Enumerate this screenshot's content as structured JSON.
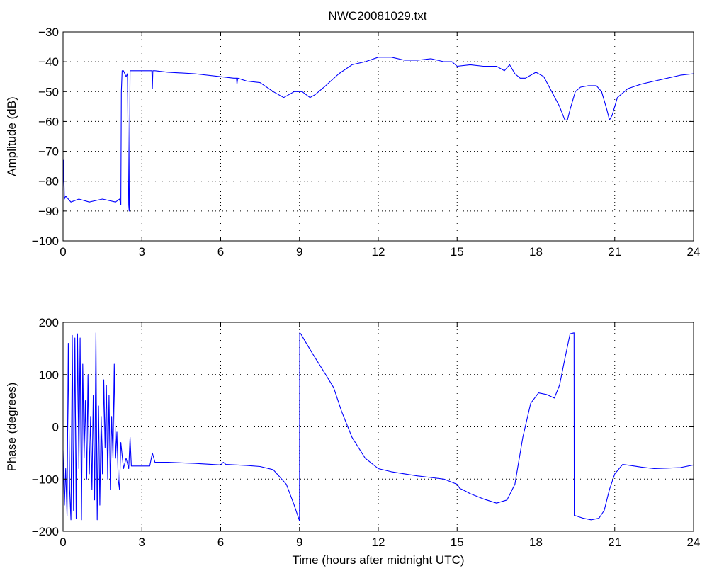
{
  "figure": {
    "title": "NWC20081029.txt",
    "background": "#ffffff",
    "line_color": "#0000ff",
    "axis_color": "#000000"
  },
  "chart_data": [
    {
      "type": "line",
      "title": "NWC20081029.txt",
      "xlabel": "",
      "ylabel": "Amplitude (dB)",
      "xlim": [
        0,
        24
      ],
      "ylim": [
        -100,
        -30
      ],
      "xticks": [
        0,
        3,
        6,
        9,
        12,
        15,
        18,
        21,
        24
      ],
      "xtick_labels": [
        "0",
        "3",
        "6",
        "9",
        "12",
        "15",
        "18",
        "21",
        "24"
      ],
      "yticks": [
        -100,
        -90,
        -80,
        -70,
        -60,
        -50,
        -40,
        -30
      ],
      "ytick_labels": [
        "−100",
        "−90",
        "−80",
        "−70",
        "−60",
        "−50",
        "−40",
        "−30"
      ],
      "grid": true,
      "series": [
        {
          "color": "#0000ff",
          "x": [
            0.0,
            0.02,
            0.05,
            0.1,
            0.3,
            0.6,
            1.0,
            1.5,
            2.0,
            2.15,
            2.2,
            2.22,
            2.25,
            2.3,
            2.4,
            2.45,
            2.5,
            2.52,
            2.55,
            2.6,
            2.8,
            3.0,
            3.2,
            3.3,
            3.38,
            3.4,
            3.42,
            3.5,
            4.0,
            5.0,
            6.0,
            6.5,
            6.6,
            6.62,
            6.65,
            7.0,
            7.5,
            8.0,
            8.4,
            8.8,
            9.1,
            9.4,
            9.6,
            10.0,
            10.5,
            11.0,
            11.5,
            12.0,
            12.5,
            13.0,
            13.5,
            14.0,
            14.5,
            14.8,
            15.0,
            15.5,
            16.0,
            16.5,
            16.8,
            17.0,
            17.2,
            17.4,
            17.6,
            17.8,
            18.0,
            18.3,
            18.6,
            18.9,
            19.1,
            19.2,
            19.3,
            19.5,
            19.7,
            20.0,
            20.3,
            20.5,
            20.7,
            20.8,
            20.9,
            21.1,
            21.5,
            22.0,
            22.5,
            23.0,
            23.5,
            24.0
          ],
          "y": [
            -83,
            -73,
            -86,
            -85,
            -87,
            -86,
            -87,
            -86,
            -87,
            -86,
            -88,
            -50,
            -43,
            -43,
            -45,
            -44,
            -88,
            -90,
            -43,
            -43,
            -43,
            -43,
            -43,
            -43,
            -43,
            -49,
            -43,
            -43,
            -43.5,
            -44,
            -45,
            -45.5,
            -45.5,
            -47.5,
            -45.5,
            -46.5,
            -47,
            -50,
            -52,
            -50,
            -50,
            -52,
            -51,
            -48,
            -44,
            -41,
            -40,
            -38.5,
            -38.5,
            -39.5,
            -39.5,
            -39,
            -40,
            -40,
            -41.5,
            -41,
            -41.5,
            -41.5,
            -43,
            -41,
            -44,
            -45.5,
            -45.5,
            -44.5,
            -43.5,
            -45,
            -50,
            -55,
            -59.5,
            -59.5,
            -56,
            -50,
            -48.5,
            -48,
            -48,
            -50,
            -56,
            -59.5,
            -58,
            -52,
            -49,
            -47.5,
            -46.5,
            -45.5,
            -44.5,
            -44
          ]
        }
      ]
    },
    {
      "type": "line",
      "title": "",
      "xlabel": "Time (hours after midnight UTC)",
      "ylabel": "Phase (degrees)",
      "xlim": [
        0,
        24
      ],
      "ylim": [
        -200,
        200
      ],
      "xticks": [
        0,
        3,
        6,
        9,
        12,
        15,
        18,
        21,
        24
      ],
      "xtick_labels": [
        "0",
        "3",
        "6",
        "9",
        "12",
        "15",
        "18",
        "21",
        "24"
      ],
      "yticks": [
        -200,
        -100,
        0,
        100,
        200
      ],
      "ytick_labels": [
        "−200",
        "−100",
        "0",
        "100",
        "200"
      ],
      "grid": true,
      "series": [
        {
          "color": "#0000ff",
          "x": [
            0.0,
            0.05,
            0.1,
            0.15,
            0.2,
            0.25,
            0.3,
            0.35,
            0.4,
            0.45,
            0.5,
            0.55,
            0.6,
            0.65,
            0.7,
            0.75,
            0.8,
            0.85,
            0.9,
            0.95,
            1.0,
            1.05,
            1.1,
            1.15,
            1.2,
            1.25,
            1.3,
            1.35,
            1.4,
            1.45,
            1.5,
            1.55,
            1.6,
            1.65,
            1.7,
            1.75,
            1.8,
            1.85,
            1.9,
            1.95,
            2.0,
            2.05,
            2.1,
            2.15,
            2.2,
            2.3,
            2.4,
            2.5,
            2.55,
            2.6,
            2.8,
            3.0,
            3.3,
            3.4,
            3.5,
            4.0,
            5.0,
            6.0,
            6.1,
            6.2,
            7.0,
            7.5,
            8.0,
            8.5,
            8.8,
            9.0,
            9.01,
            9.05,
            9.2,
            9.5,
            10.0,
            10.3,
            10.6,
            11.0,
            11.5,
            12.0,
            12.5,
            13.0,
            13.5,
            14.0,
            14.5,
            15.0,
            15.1,
            15.2,
            15.5,
            16.0,
            16.5,
            16.9,
            17.2,
            17.5,
            17.8,
            18.1,
            18.4,
            18.7,
            18.9,
            19.1,
            19.3,
            19.45,
            19.46,
            19.5,
            19.8,
            20.1,
            20.4,
            20.6,
            20.8,
            21.0,
            21.3,
            21.6,
            22.0,
            22.5,
            23.0,
            23.5,
            24.0
          ],
          "y": [
            -45,
            -150,
            -80,
            -170,
            160,
            -120,
            -178,
            175,
            -160,
            170,
            -175,
            178,
            -80,
            170,
            -178,
            120,
            -60,
            50,
            -100,
            100,
            -90,
            20,
            -120,
            60,
            -140,
            180,
            -178,
            40,
            -150,
            20,
            -90,
            90,
            -40,
            80,
            -100,
            60,
            -120,
            20,
            -60,
            120,
            -60,
            -10,
            -100,
            -120,
            -30,
            -80,
            -60,
            -80,
            -20,
            -75,
            -75,
            -75,
            -75,
            -50,
            -68,
            -68,
            -70,
            -73,
            -68,
            -72,
            -74,
            -76,
            -82,
            -110,
            -150,
            -180,
            180,
            178,
            165,
            140,
            100,
            75,
            30,
            -20,
            -60,
            -80,
            -86,
            -90,
            -94,
            -97,
            -100,
            -110,
            -118,
            -120,
            -128,
            -138,
            -146,
            -140,
            -110,
            -20,
            45,
            65,
            62,
            55,
            80,
            130,
            178,
            180,
            -170,
            -170,
            -175,
            -178,
            -175,
            -160,
            -120,
            -90,
            -72,
            -74,
            -77,
            -80,
            -79,
            -78,
            -73
          ]
        }
      ]
    }
  ]
}
